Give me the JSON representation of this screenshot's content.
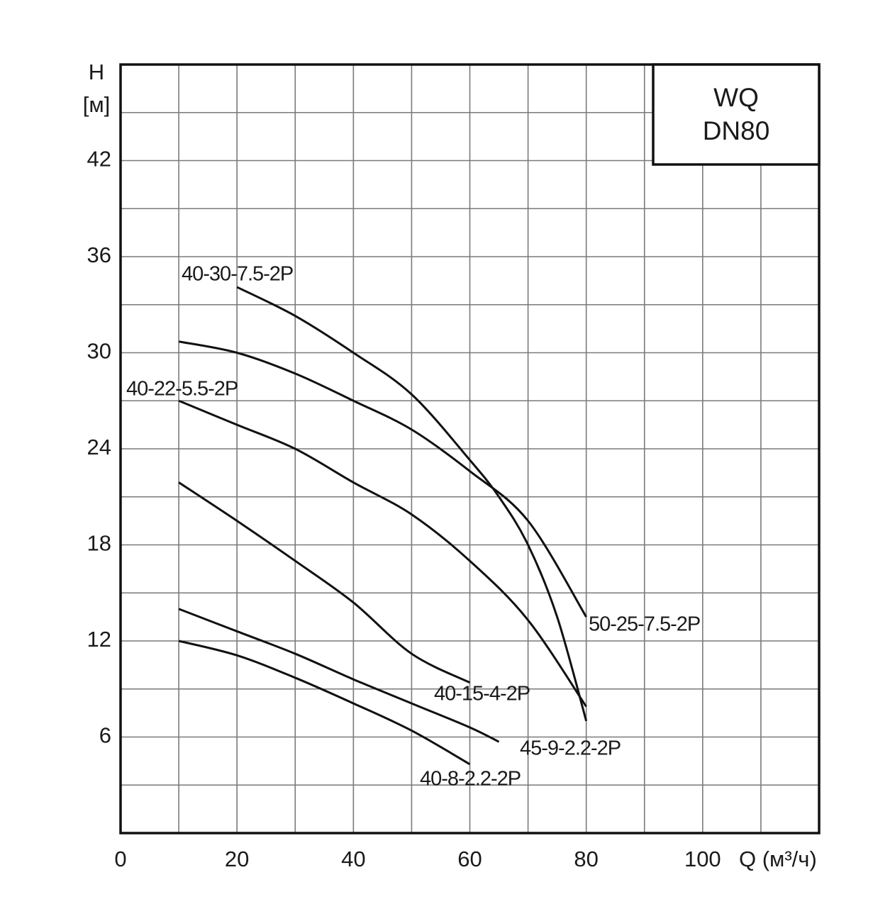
{
  "chart_data": {
    "type": "line",
    "y_label_top": "H",
    "y_label_unit": "[м]",
    "x_label": "Q (м³/ч)",
    "legend_lines": [
      "WQ",
      "DN80"
    ],
    "xlim": [
      0,
      120
    ],
    "ylim": [
      0,
      48
    ],
    "xticks": [
      0,
      20,
      40,
      60,
      80,
      100
    ],
    "yticks": [
      6,
      12,
      18,
      24,
      30,
      36,
      42
    ],
    "xgrid": [
      10,
      20,
      30,
      40,
      50,
      60,
      70,
      80,
      90,
      100,
      110
    ],
    "ygrid": [
      3,
      6,
      9,
      12,
      15,
      18,
      21,
      24,
      27,
      30,
      33,
      36,
      39,
      42,
      45
    ],
    "grid": true,
    "series": [
      {
        "name": "40-30-7.5-2P",
        "color": "#111111",
        "x": [
          20,
          30,
          40,
          50,
          60,
          65,
          70,
          75,
          80
        ],
        "values": [
          34.1,
          32.3,
          30.0,
          27.4,
          23.3,
          21.0,
          18.0,
          13.5,
          7.0
        ]
      },
      {
        "name": "50-25-7.5-2P",
        "color": "#111111",
        "x": [
          10,
          20,
          30,
          40,
          50,
          60,
          70,
          80
        ],
        "values": [
          30.7,
          30.0,
          28.7,
          27.0,
          25.2,
          22.6,
          19.5,
          13.5
        ]
      },
      {
        "name": "40-22-5.5-2P",
        "color": "#111111",
        "x": [
          10,
          20,
          30,
          40,
          50,
          60,
          70,
          80
        ],
        "values": [
          27.0,
          25.5,
          24.0,
          21.9,
          19.9,
          17.0,
          13.3,
          7.9
        ]
      },
      {
        "name": "40-15-4-2P",
        "color": "#111111",
        "x": [
          10,
          20,
          30,
          40,
          50,
          60
        ],
        "values": [
          21.9,
          19.5,
          17.0,
          14.4,
          11.2,
          9.4
        ]
      },
      {
        "name": "45-9-2.2-2P",
        "color": "#111111",
        "x": [
          10,
          20,
          30,
          40,
          50,
          60,
          65
        ],
        "values": [
          14.0,
          12.6,
          11.2,
          9.6,
          8.1,
          6.6,
          5.7
        ]
      },
      {
        "name": "40-8-2.2-2P",
        "color": "#111111",
        "x": [
          10,
          20,
          30,
          40,
          50,
          60
        ],
        "values": [
          12.0,
          11.1,
          9.7,
          8.1,
          6.4,
          4.3
        ]
      }
    ]
  }
}
